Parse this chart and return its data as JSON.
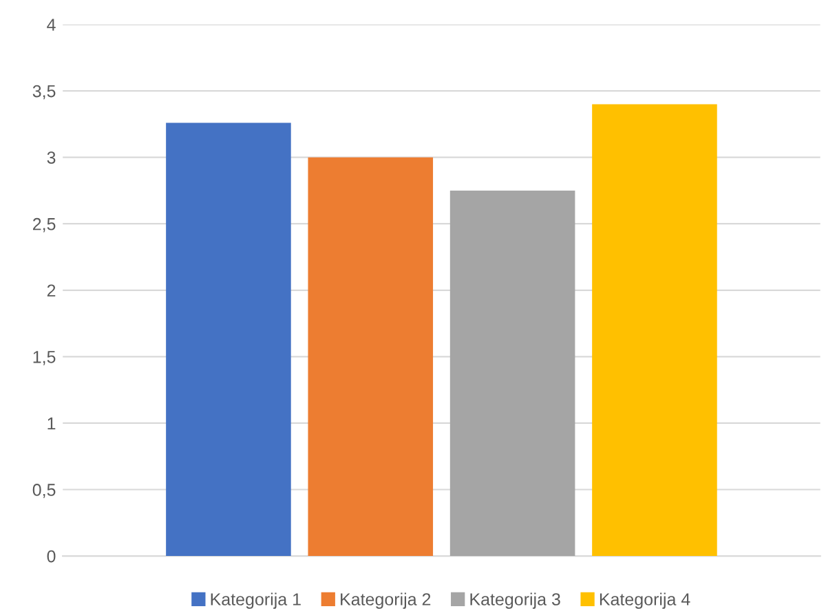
{
  "chart_data": {
    "type": "bar",
    "categories": [
      null
    ],
    "series": [
      {
        "name": "Kategorija 1",
        "color": "#4472c4",
        "values": [
          3.26
        ]
      },
      {
        "name": "Kategorija 2",
        "color": "#ed7d31",
        "values": [
          3.0
        ]
      },
      {
        "name": "Kategorija 3",
        "color": "#a5a5a5",
        "values": [
          2.75
        ]
      },
      {
        "name": "Kategorija 4",
        "color": "#ffc000",
        "values": [
          3.4
        ]
      }
    ],
    "ylim": [
      0,
      4
    ],
    "yticks": [
      0,
      {
        "value": 0.5,
        "label": "0,5"
      },
      1,
      {
        "value": 1.5,
        "label": "1,5"
      },
      2,
      {
        "value": 2.5,
        "label": "2,5"
      },
      3,
      {
        "value": 3.5,
        "label": "3,5"
      },
      4
    ],
    "grid": "y",
    "legend": "bottom"
  }
}
